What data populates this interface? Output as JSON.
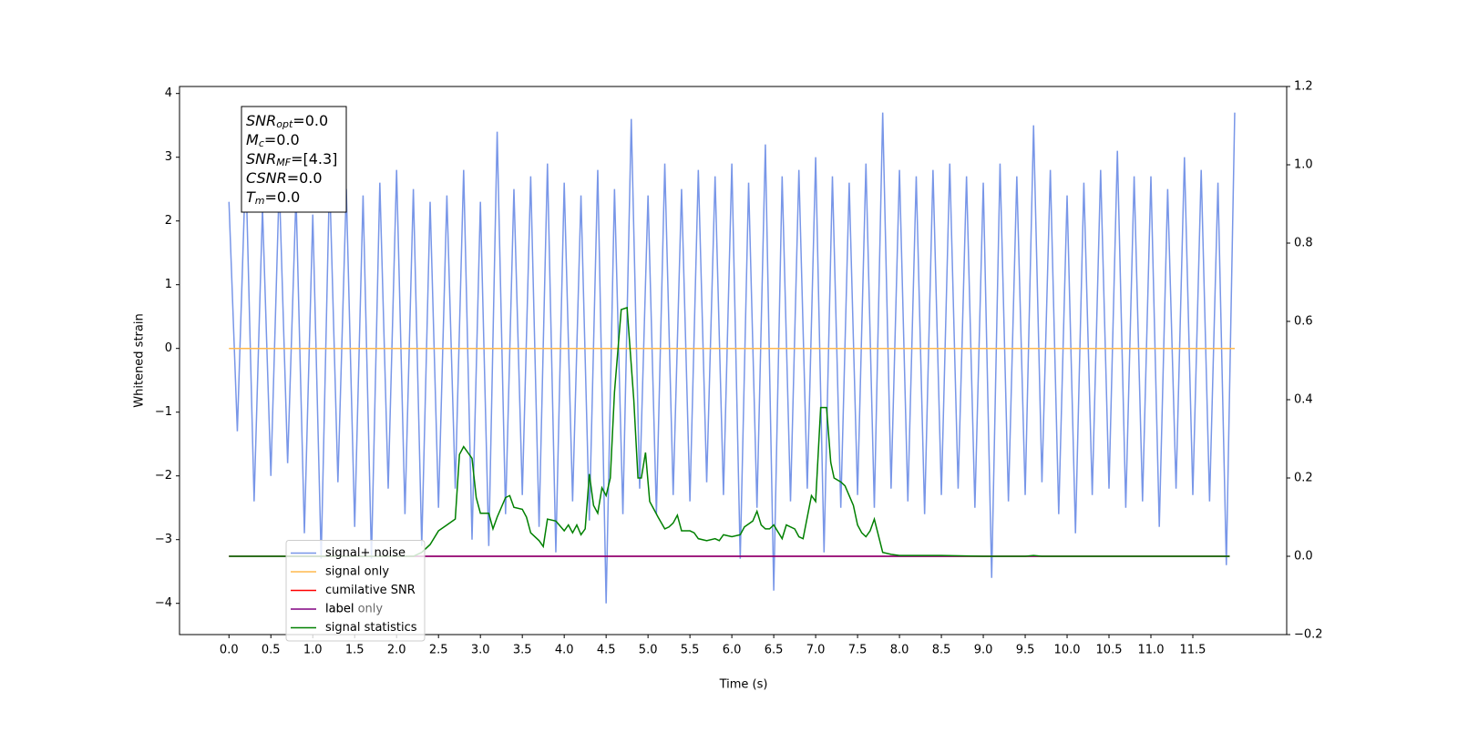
{
  "chart_data": {
    "type": "line",
    "xlabel": "Time (s)",
    "ylabel": "Whitened strain",
    "xlim": [
      -0.59,
      12.62
    ],
    "ylim": [
      -4.49,
      4.11
    ],
    "y2lim": [
      -0.2,
      1.2
    ],
    "xticks": [
      {
        "value": 0,
        "label": "0.0"
      },
      0.5,
      {
        "value": 1,
        "label": "1.0"
      },
      1.5,
      {
        "value": 2,
        "label": "2.0"
      },
      2.5,
      {
        "value": 3,
        "label": "3.0"
      },
      3.5,
      {
        "value": 4,
        "label": "4.0"
      },
      4.5,
      {
        "value": 5,
        "label": "5.0"
      },
      5.5,
      {
        "value": 6,
        "label": "6.0"
      },
      6.5,
      {
        "value": 7,
        "label": "7.0"
      },
      7.5,
      {
        "value": 8,
        "label": "8.0"
      },
      8.5,
      {
        "value": 9,
        "label": "9.0"
      },
      9.5,
      {
        "value": 10,
        "label": "10.0"
      },
      10.5,
      {
        "value": 11,
        "label": "11.0"
      },
      11.5
    ],
    "yticks": [
      {
        "value": -4,
        "label": "−4"
      },
      {
        "value": -3,
        "label": "−3"
      },
      {
        "value": -2,
        "label": "−2"
      },
      {
        "value": -1,
        "label": "−1"
      },
      0,
      1,
      2,
      3,
      4
    ],
    "y2ticks": [
      {
        "value": -0.2,
        "label": "−0.2"
      },
      {
        "value": 0,
        "label": "0.0"
      },
      0.2,
      0.4,
      0.6,
      0.8,
      {
        "value": 1,
        "label": "1.0"
      },
      1.2
    ],
    "legend": "lower left",
    "legend_overlapped_text": "label only",
    "annotation": [
      {
        "symbol": "SNR",
        "sub": "opt",
        "text": "=0.0"
      },
      {
        "symbol": "M",
        "sub": "c",
        "text": "=0.0"
      },
      {
        "symbol": "SNR",
        "sub": "MF",
        "text": "=[4.3]"
      },
      {
        "symbol": "CSNR",
        "sub": "",
        "text": "=0.0"
      },
      {
        "symbol": "T",
        "sub": "m",
        "text": "=0.0"
      }
    ],
    "series": [
      {
        "name": "signal+ noise",
        "color": "#7896e8",
        "x": [
          0,
          0.1,
          0.2,
          0.3,
          0.4,
          0.5,
          0.6,
          0.7,
          0.8,
          0.9,
          1,
          1.1,
          1.2,
          1.3,
          1.4,
          1.5,
          1.6,
          1.7,
          1.8,
          1.9,
          2,
          2.1,
          2.2,
          2.3,
          2.4,
          2.5,
          2.6,
          2.7,
          2.8,
          2.9,
          3,
          3.1,
          3.2,
          3.3,
          3.4,
          3.5,
          3.6,
          3.7,
          3.8,
          3.9,
          4,
          4.1,
          4.2,
          4.3,
          4.4,
          4.5,
          4.6,
          4.7,
          4.8,
          4.9,
          5,
          5.1,
          5.2,
          5.3,
          5.4,
          5.5,
          5.6,
          5.7,
          5.8,
          5.9,
          6,
          6.1,
          6.2,
          6.3,
          6.4,
          6.5,
          6.6,
          6.7,
          6.8,
          6.9,
          7,
          7.1,
          7.2,
          7.3,
          7.4,
          7.5,
          7.6,
          7.7,
          7.8,
          7.9,
          8,
          8.1,
          8.2,
          8.3,
          8.4,
          8.5,
          8.6,
          8.7,
          8.8,
          8.9,
          9,
          9.1,
          9.2,
          9.3,
          9.4,
          9.5,
          9.6,
          9.7,
          9.8,
          9.9,
          10,
          10.1,
          10.2,
          10.3,
          10.4,
          10.5,
          10.6,
          10.7,
          10.8,
          10.9,
          11,
          11.1,
          11.2,
          11.3,
          11.4,
          11.5,
          11.6,
          11.7,
          11.8,
          11.9,
          12
        ],
        "values": [
          2.3,
          -1.3,
          2.9,
          -2.4,
          2.2,
          -2.0,
          2.6,
          -1.8,
          2.4,
          -2.9,
          2.1,
          -3.3,
          2.7,
          -2.1,
          2.5,
          -2.8,
          2.4,
          -3.3,
          2.6,
          -2.2,
          2.8,
          -2.6,
          2.5,
          -3.1,
          2.3,
          -2.5,
          2.4,
          -2.2,
          2.8,
          -3.0,
          2.3,
          -3.1,
          3.4,
          -2.6,
          2.5,
          -2.3,
          2.7,
          -2.8,
          2.9,
          -3.2,
          2.6,
          -2.4,
          2.4,
          -2.7,
          2.8,
          -4.0,
          2.5,
          -2.6,
          3.6,
          -2.2,
          2.4,
          -2.6,
          2.9,
          -2.3,
          2.5,
          -2.4,
          2.8,
          -2.1,
          2.7,
          -2.3,
          2.9,
          -3.3,
          2.6,
          -2.5,
          3.2,
          -3.8,
          2.7,
          -2.4,
          2.8,
          -2.2,
          3.0,
          -3.2,
          2.7,
          -2.5,
          2.6,
          -2.3,
          2.9,
          -2.5,
          3.7,
          -2.2,
          2.8,
          -2.4,
          2.7,
          -2.6,
          2.8,
          -2.3,
          2.9,
          -2.2,
          2.7,
          -2.5,
          2.6,
          -3.6,
          2.9,
          -2.4,
          2.7,
          -2.3,
          3.5,
          -2.1,
          2.8,
          -2.6,
          2.4,
          -2.9,
          2.6,
          -2.3,
          2.8,
          -2.2,
          3.1,
          -2.5,
          2.7,
          -2.4,
          2.7,
          -2.8,
          2.5,
          -2.2,
          3.0,
          -2.3,
          2.8,
          -2.4,
          2.6,
          -3.4,
          3.7
        ]
      },
      {
        "name": "signal only",
        "color": "#ffb84d",
        "x": [
          0,
          12
        ],
        "values": [
          0,
          0
        ]
      },
      {
        "name": "cumilative SNR",
        "color": "#ff0000",
        "axis": "y2",
        "x": [
          0,
          11.94
        ],
        "values": [
          0,
          0
        ]
      },
      {
        "name": "label",
        "color": "#800080",
        "axis": "y2",
        "x": [
          0,
          11.94
        ],
        "values": [
          0,
          0
        ]
      },
      {
        "name": "signal statistics",
        "color": "#008000",
        "axis": "y2",
        "x": [
          0,
          2.2,
          2.3,
          2.4,
          2.5,
          2.6,
          2.7,
          2.75,
          2.8,
          2.9,
          2.95,
          3.0,
          3.1,
          3.15,
          3.2,
          3.3,
          3.35,
          3.4,
          3.5,
          3.55,
          3.6,
          3.7,
          3.75,
          3.8,
          3.9,
          4.0,
          4.05,
          4.1,
          4.15,
          4.2,
          4.25,
          4.3,
          4.35,
          4.4,
          4.45,
          4.5,
          4.55,
          4.6,
          4.68,
          4.75,
          4.83,
          4.88,
          4.92,
          4.97,
          5.02,
          5.07,
          5.12,
          5.2,
          5.25,
          5.3,
          5.35,
          5.4,
          5.5,
          5.55,
          5.6,
          5.7,
          5.8,
          5.85,
          5.9,
          6.0,
          6.1,
          6.15,
          6.25,
          6.3,
          6.35,
          6.4,
          6.45,
          6.5,
          6.6,
          6.65,
          6.75,
          6.8,
          6.85,
          6.95,
          7.0,
          7.06,
          7.13,
          7.18,
          7.22,
          7.3,
          7.35,
          7.45,
          7.5,
          7.55,
          7.6,
          7.65,
          7.7,
          7.8,
          7.9,
          8.0,
          8.5,
          9.0,
          9.5,
          9.6,
          9.7,
          11.94
        ],
        "values": [
          0,
          0,
          0.01,
          0.03,
          0.065,
          0.08,
          0.095,
          0.26,
          0.28,
          0.25,
          0.15,
          0.11,
          0.11,
          0.07,
          0.1,
          0.15,
          0.155,
          0.125,
          0.12,
          0.1,
          0.06,
          0.04,
          0.025,
          0.095,
          0.09,
          0.065,
          0.08,
          0.06,
          0.08,
          0.055,
          0.07,
          0.21,
          0.13,
          0.11,
          0.175,
          0.155,
          0.2,
          0.42,
          0.63,
          0.635,
          0.4,
          0.2,
          0.2,
          0.265,
          0.14,
          0.12,
          0.1,
          0.07,
          0.075,
          0.085,
          0.105,
          0.065,
          0.065,
          0.06,
          0.045,
          0.04,
          0.045,
          0.04,
          0.055,
          0.05,
          0.055,
          0.075,
          0.09,
          0.115,
          0.08,
          0.07,
          0.07,
          0.08,
          0.045,
          0.08,
          0.07,
          0.05,
          0.045,
          0.155,
          0.14,
          0.38,
          0.38,
          0.24,
          0.2,
          0.19,
          0.18,
          0.13,
          0.08,
          0.06,
          0.05,
          0.065,
          0.095,
          0.01,
          0.005,
          0.002,
          0.002,
          0,
          0,
          0.002,
          0,
          0
        ]
      }
    ]
  }
}
